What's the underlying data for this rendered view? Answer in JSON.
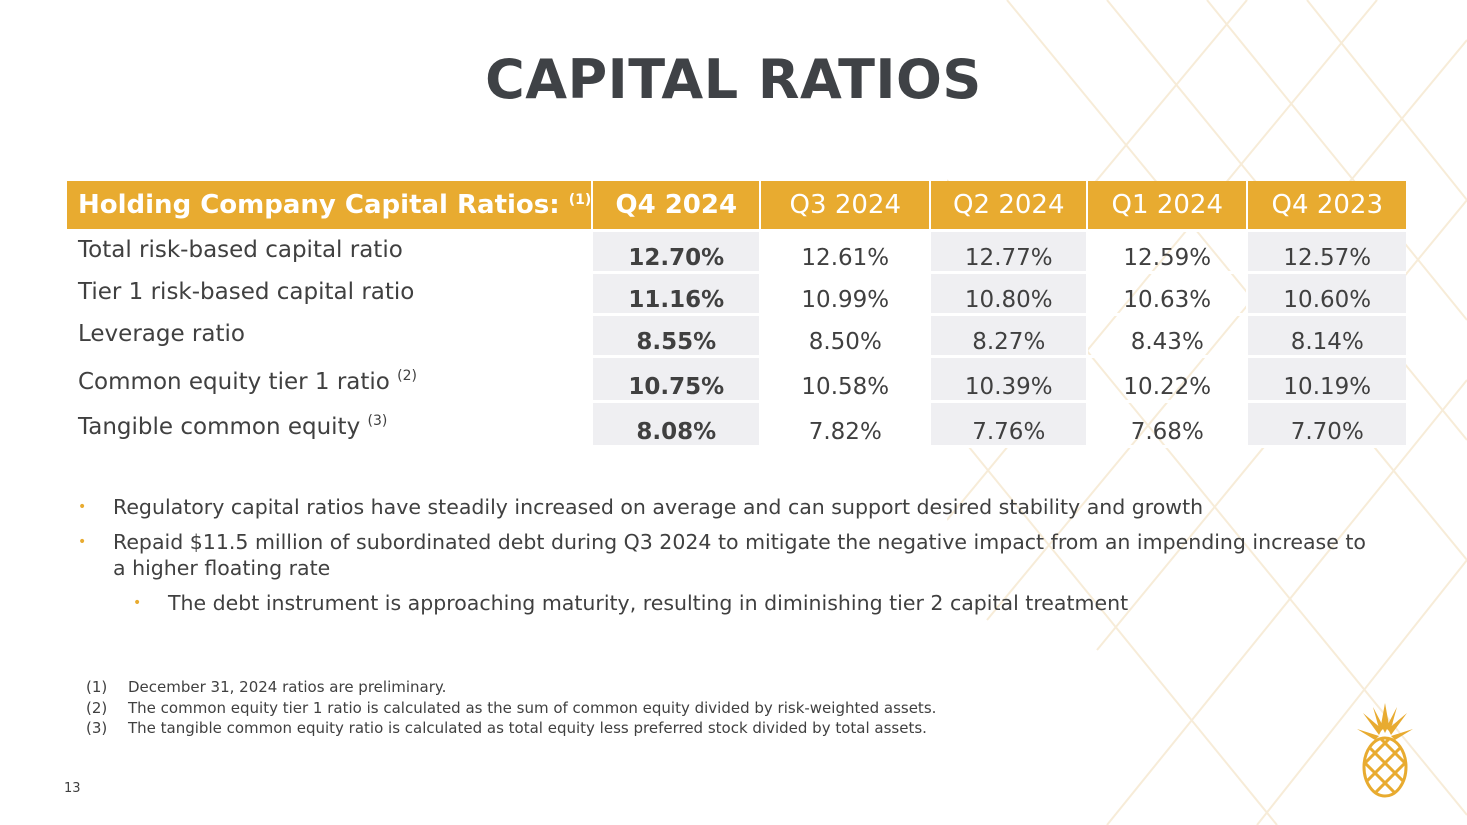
{
  "slide": {
    "title": "CAPITAL RATIOS",
    "page_number": "13"
  },
  "table": {
    "header": {
      "label": "Holding Company Capital Ratios:",
      "label_note": "(1)",
      "columns": [
        "Q4 2024",
        "Q3 2024",
        "Q2 2024",
        "Q1 2024",
        "Q4 2023"
      ]
    },
    "rows": [
      {
        "label": "Total risk-based capital ratio",
        "note": "",
        "values": [
          "12.70%",
          "12.61%",
          "12.77%",
          "12.59%",
          "12.57%"
        ]
      },
      {
        "label": "Tier 1 risk-based capital ratio",
        "note": "",
        "values": [
          "11.16%",
          "10.99%",
          "10.80%",
          "10.63%",
          "10.60%"
        ]
      },
      {
        "label": "Leverage ratio",
        "note": "",
        "values": [
          "8.55%",
          "8.50%",
          "8.27%",
          "8.43%",
          "8.14%"
        ]
      },
      {
        "label": "Common equity tier 1 ratio",
        "note": "(2)",
        "values": [
          "10.75%",
          "10.58%",
          "10.39%",
          "10.22%",
          "10.19%"
        ]
      },
      {
        "label": "Tangible common equity",
        "note": "(3)",
        "values": [
          "8.08%",
          "7.82%",
          "7.76%",
          "7.68%",
          "7.70%"
        ]
      }
    ]
  },
  "bullets": [
    {
      "text": "Regulatory capital ratios have steadily increased on average and can support desired stability and growth"
    },
    {
      "text": "Repaid $11.5 million of subordinated debt during Q3 2024 to mitigate the negative impact from an impending increase to a higher floating rate"
    },
    {
      "text": "The debt instrument is approaching maturity, resulting in diminishing tier 2 capital treatment"
    }
  ],
  "footnotes": [
    {
      "num": "(1)",
      "text": "December 31, 2024 ratios are preliminary."
    },
    {
      "num": "(2)",
      "text": "The common equity tier 1 ratio is calculated as the sum of common equity divided by risk-weighted assets."
    },
    {
      "num": "(3)",
      "text": "The tangible common equity ratio is calculated as total equity less preferred stock divided by total assets."
    }
  ],
  "colors": {
    "accent": "#e8ab30",
    "header_text": "#ffffff",
    "body_text": "#404040",
    "shade": "#efeff2"
  },
  "icons": {
    "bullet": "•",
    "logo": "pineapple-logo"
  }
}
